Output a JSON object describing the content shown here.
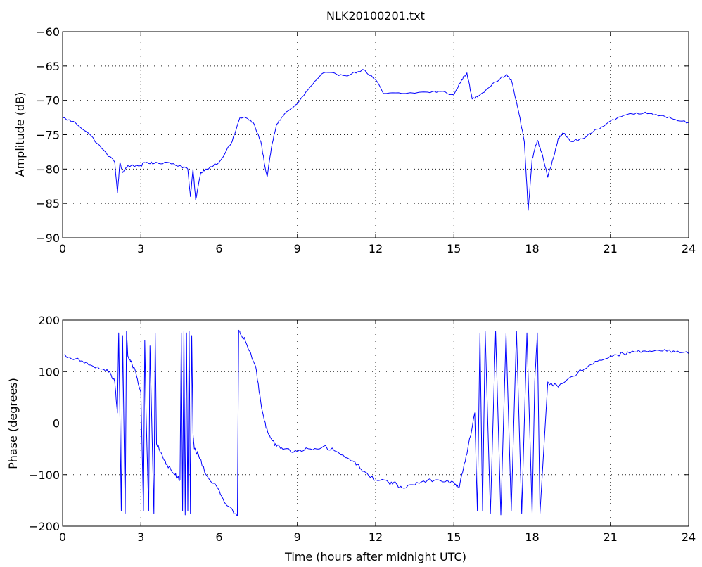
{
  "chart_data": [
    {
      "type": "line",
      "title": "NLK20100201.txt",
      "xlabel": "",
      "ylabel": "Amplitude (dB)",
      "xlim": [
        0,
        24
      ],
      "ylim": [
        -90,
        -60
      ],
      "xticks": [
        0,
        3,
        6,
        9,
        12,
        15,
        18,
        21,
        24
      ],
      "yticks": [
        -90,
        -85,
        -80,
        -75,
        -70,
        -65,
        -60
      ],
      "grid": true,
      "color": "#0000ff",
      "series": [
        {
          "x": [
            0,
            0.5,
            1,
            1.5,
            2,
            2.1,
            2.2,
            2.3,
            2.5,
            3,
            3.2,
            3.5,
            4,
            4.5,
            4.8,
            4.9,
            5,
            5.1,
            5.3,
            5.5,
            6,
            6.5,
            6.8,
            7,
            7.3,
            7.6,
            7.8,
            7.85,
            8,
            8.2,
            8.5,
            9,
            9.5,
            10,
            10.5,
            11,
            11.5,
            12,
            12.3,
            13,
            14,
            14.5,
            15,
            15.3,
            15.5,
            15.7,
            16,
            16.5,
            17,
            17.2,
            17.5,
            17.7,
            17.85,
            18,
            18.2,
            18.4,
            18.6,
            18.8,
            19,
            19.2,
            19.5,
            20,
            20.5,
            21,
            21.5,
            22,
            22.5,
            23,
            23.5,
            24
          ],
          "y": [
            -72.5,
            -73.3,
            -74.8,
            -77,
            -79,
            -83.5,
            -79,
            -80.5,
            -79.5,
            -79.5,
            -79,
            -79.2,
            -79,
            -79.5,
            -80,
            -84,
            -80,
            -84.5,
            -80.5,
            -80,
            -79,
            -76,
            -72.5,
            -72.5,
            -73.2,
            -76,
            -80.5,
            -81,
            -77,
            -73.5,
            -72,
            -70.5,
            -68,
            -66,
            -66.2,
            -66.3,
            -65.5,
            -67,
            -69,
            -69,
            -68.8,
            -68.7,
            -69.2,
            -67,
            -66,
            -69.8,
            -69.2,
            -67.5,
            -66.3,
            -67,
            -72,
            -76,
            -86,
            -78.5,
            -75.8,
            -78,
            -81.2,
            -78.5,
            -75.5,
            -74.8,
            -76,
            -75.5,
            -74.2,
            -73,
            -72.2,
            -71.8,
            -71.9,
            -72.2,
            -72.8,
            -73.2
          ]
        }
      ]
    },
    {
      "type": "line",
      "title": "",
      "xlabel": "Time (hours after midnight UTC)",
      "ylabel": "Phase (degrees)",
      "xlim": [
        0,
        24
      ],
      "ylim": [
        -200,
        200
      ],
      "xticks": [
        0,
        3,
        6,
        9,
        12,
        15,
        18,
        21,
        24
      ],
      "yticks": [
        -200,
        -100,
        0,
        100,
        200
      ],
      "grid": true,
      "color": "#0000ff",
      "series": [
        {
          "x": [
            0,
            0.5,
            1,
            1.5,
            1.8,
            2,
            2.1,
            2.15,
            2.25,
            2.3,
            2.4,
            2.45,
            2.5,
            2.6,
            2.8,
            3,
            3.1,
            3.15,
            3.2,
            3.3,
            3.35,
            3.5,
            3.55,
            3.6,
            3.8,
            4,
            4.3,
            4.5,
            4.55,
            4.6,
            4.65,
            4.7,
            4.75,
            4.8,
            4.85,
            4.9,
            4.95,
            5.0,
            5.05,
            5.2,
            5.5,
            6,
            6.3,
            6.7,
            6.75,
            6.8,
            7,
            7.4,
            7.6,
            7.8,
            8,
            8.2,
            8.5,
            9,
            9.5,
            10,
            10.5,
            11,
            11.3,
            11.6,
            12,
            12.5,
            12.8,
            13,
            13.5,
            14,
            14.5,
            15,
            15.2,
            15.3,
            15.5,
            15.8,
            15.9,
            16.0,
            16.1,
            16.2,
            16.4,
            16.6,
            16.8,
            17.0,
            17.2,
            17.4,
            17.6,
            17.8,
            18,
            18.1,
            18.2,
            18.3,
            18.6,
            19,
            19.5,
            20,
            20.5,
            21,
            21.5,
            22,
            22.5,
            23,
            23.5,
            24
          ],
          "y": [
            132,
            125,
            113,
            105,
            100,
            80,
            20,
            175,
            -170,
            170,
            -175,
            178,
            130,
            120,
            100,
            60,
            -170,
            160,
            20,
            -170,
            150,
            -175,
            175,
            -40,
            -60,
            -80,
            -100,
            -110,
            175,
            -170,
            178,
            -178,
            175,
            -170,
            178,
            -175,
            170,
            -20,
            -50,
            -60,
            -100,
            -130,
            -160,
            -180,
            178,
            175,
            160,
            110,
            40,
            -10,
            -30,
            -45,
            -50,
            -55,
            -50,
            -45,
            -55,
            -70,
            -80,
            -95,
            -110,
            -115,
            -118,
            -125,
            -120,
            -110,
            -112,
            -115,
            -125,
            -100,
            -60,
            20,
            -170,
            175,
            -170,
            178,
            -175,
            178,
            -178,
            175,
            -170,
            178,
            -175,
            175,
            -175,
            80,
            175,
            -175,
            80,
            70,
            90,
            105,
            120,
            130,
            135,
            138,
            140,
            140,
            138,
            135
          ]
        }
      ]
    }
  ]
}
